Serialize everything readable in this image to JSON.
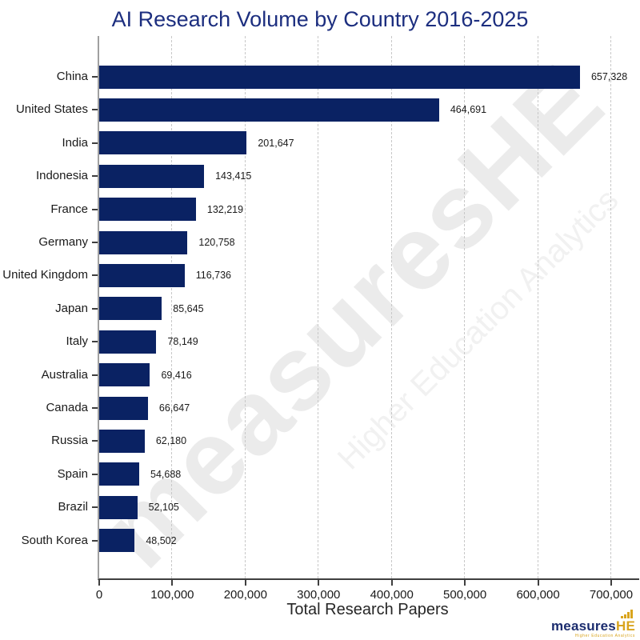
{
  "title": "AI Research Volume by Country 2016-2025",
  "watermark": {
    "main": "measuresHE",
    "sub": "Higher Education Analytics"
  },
  "logo": {
    "main": "measures",
    "accent": "HE",
    "tagline": "Higher Education Analytics"
  },
  "colors": {
    "bar": "#0a2263",
    "title": "#1c2e7f",
    "text": "#1a1a1a",
    "grid": "#c8c8c8",
    "axis": "#3f3f3f",
    "axis_left": "#a0a0a0",
    "watermark": "#ebebeb",
    "watermark_sub": "#f1f1f1",
    "logo_navy": "#1b2c6e",
    "logo_gold": "#d9a41d"
  },
  "chart_data": {
    "type": "bar",
    "orientation": "horizontal",
    "title": "AI Research Volume by Country 2016-2025",
    "xlabel": "Total Research Papers",
    "ylabel": "",
    "xlim": [
      0,
      700000
    ],
    "xticks": [
      0,
      100000,
      200000,
      300000,
      400000,
      500000,
      600000,
      700000
    ],
    "xtick_labels": [
      "0",
      "100,000",
      "200,000",
      "300,000",
      "400,000",
      "500,000",
      "600,000",
      "700,000"
    ],
    "grid": "vertical-dashed",
    "legend": "none",
    "categories": [
      "China",
      "United States",
      "India",
      "Indonesia",
      "France",
      "Germany",
      "United Kingdom",
      "Japan",
      "Italy",
      "Australia",
      "Canada",
      "Russia",
      "Spain",
      "Brazil",
      "South Korea"
    ],
    "values": [
      657328,
      464691,
      201647,
      143415,
      132219,
      120758,
      116736,
      85645,
      78149,
      69416,
      66647,
      62180,
      54688,
      52105,
      48502
    ],
    "value_labels": [
      "657,328",
      "464,691",
      "201,647",
      "143,415",
      "132,219",
      "120,758",
      "116,736",
      "85,645",
      "78,149",
      "69,416",
      "66,647",
      "62,180",
      "54,688",
      "52,105",
      "48,502"
    ]
  }
}
